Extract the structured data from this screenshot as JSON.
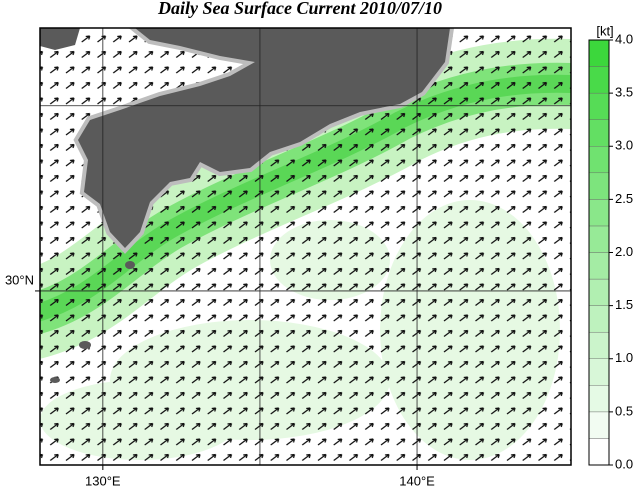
{
  "title": "Daily Sea Surface Current 2010/07/10",
  "map": {
    "lon_range": [
      128,
      144.9
    ],
    "lat_range": [
      25.3,
      37.1
    ],
    "lon_ticks": [
      {
        "value": 130,
        "label": "130°E"
      },
      {
        "value": 140,
        "label": "140°E"
      }
    ],
    "lat_ticks": [
      {
        "value": 30,
        "label": "30°N"
      }
    ],
    "grid_lon": [
      130,
      135,
      140
    ],
    "grid_lat": [
      30,
      35
    ]
  },
  "colorbar": {
    "unit": "[kt]",
    "range": [
      0,
      4
    ],
    "ticks": [
      {
        "value": 0,
        "label": "0.0"
      },
      0.5,
      {
        "value": 1,
        "label": "1.0"
      },
      1.5,
      {
        "value": 2,
        "label": "2.0"
      },
      2.5,
      {
        "value": 3,
        "label": "3.0"
      },
      3.5,
      {
        "value": 4,
        "label": "4.0"
      }
    ]
  }
}
